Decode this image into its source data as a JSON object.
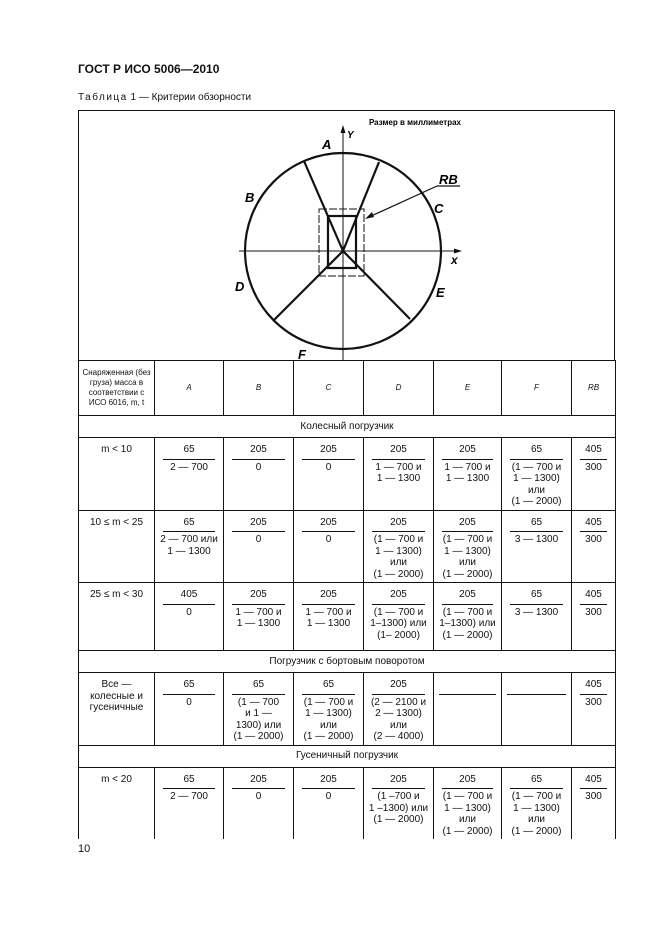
{
  "header": {
    "title": "ГОСТ Р ИСО 5006—2010",
    "caption_prefix": "Таблица",
    "caption_rest": " 1 — Критерии обзорности"
  },
  "diagram": {
    "units_note": "Размер в миллиметрах",
    "labels": {
      "A": "A",
      "B": "B",
      "C": "C",
      "D": "D",
      "E": "E",
      "F": "F",
      "RB": "RB",
      "x": "x",
      "y": "Y"
    }
  },
  "table": {
    "columns": [
      "Снаряженная (без груза) масса в соответствии с ИСО 6016, m, t",
      "A",
      "B",
      "C",
      "D",
      "E",
      "F",
      "RB"
    ],
    "body": [
      {
        "section": "Колесный погрузчик"
      },
      {
        "label": "m < 10",
        "cells": [
          {
            "num": "65",
            "den": [
              "2 — 700"
            ]
          },
          {
            "num": "205",
            "den": [
              "0"
            ]
          },
          {
            "num": "205",
            "den": [
              "0"
            ]
          },
          {
            "num": "205",
            "den": [
              "1 — 700 и",
              "1 — 1300"
            ]
          },
          {
            "num": "205",
            "den": [
              "1 — 700 и",
              "1 — 1300"
            ]
          },
          {
            "num": "65",
            "den": [
              "(1 — 700 и",
              "1 — 1300)",
              "или",
              "(1 — 2000)"
            ]
          },
          {
            "num": "405",
            "den": [
              "300"
            ]
          }
        ]
      },
      {
        "label": "10 ≤ m < 25",
        "cells": [
          {
            "num": "65",
            "den": [
              "2 — 700 или",
              "1 — 1300"
            ]
          },
          {
            "num": "205",
            "den": [
              "0"
            ]
          },
          {
            "num": "205",
            "den": [
              "0"
            ]
          },
          {
            "num": "205",
            "den": [
              "(1 — 700 и",
              "1 — 1300)",
              "или",
              "(1 — 2000)"
            ]
          },
          {
            "num": "205",
            "den": [
              "(1 — 700 и",
              "1 — 1300)",
              "или",
              "(1 — 2000)"
            ]
          },
          {
            "num": "65",
            "den": [
              "3 — 1300"
            ]
          },
          {
            "num": "405",
            "den": [
              "300"
            ]
          }
        ]
      },
      {
        "label": "25 ≤ m < 30",
        "cells": [
          {
            "num": "405",
            "den": [
              "0"
            ]
          },
          {
            "num": "205",
            "den": [
              "1 — 700 и",
              "1 — 1300"
            ]
          },
          {
            "num": "205",
            "den": [
              "1 — 700 и",
              "1 — 1300"
            ]
          },
          {
            "num": "205",
            "den": [
              "(1 — 700 и",
              "1–1300) или",
              "(1– 2000)"
            ]
          },
          {
            "num": "205",
            "den": [
              "(1 — 700 и",
              "1–1300) или",
              "(1 — 2000)"
            ]
          },
          {
            "num": "65",
            "den": [
              "3 — 1300"
            ]
          },
          {
            "num": "405",
            "den": [
              "300"
            ]
          }
        ]
      },
      {
        "section": "Погрузчик с бортовым поворотом"
      },
      {
        "label": "Все — колесные и гусеничные",
        "cells": [
          {
            "num": "65",
            "den": [
              "0"
            ]
          },
          {
            "num": "65",
            "den": [
              "(1 — 700",
              "и 1 —",
              "1300) или",
              "(1 — 2000)"
            ]
          },
          {
            "num": "65",
            "den": [
              "(1 — 700 и",
              "1 — 1300)",
              "или",
              "(1 — 2000)"
            ]
          },
          {
            "num": "205",
            "den": [
              "(2 — 2100 и",
              "2 — 1300)",
              "или",
              "(2 — 4000)"
            ]
          },
          {
            "num": "",
            "den": []
          },
          {
            "num": "",
            "den": []
          },
          {
            "num": "405",
            "den": [
              "300"
            ]
          }
        ]
      },
      {
        "section": "Гусеничный погрузчик"
      },
      {
        "label": "m < 20",
        "cells": [
          {
            "num": "65",
            "den": [
              "2 — 700"
            ]
          },
          {
            "num": "205",
            "den": [
              "0"
            ]
          },
          {
            "num": "205",
            "den": [
              "0"
            ]
          },
          {
            "num": "205",
            "den": [
              "(1 –700 и",
              "1 –1300) или",
              "(1 — 2000)"
            ]
          },
          {
            "num": "205",
            "den": [
              "(1 — 700 и",
              "1 — 1300)",
              "или",
              "(1 — 2000)"
            ]
          },
          {
            "num": "65",
            "den": [
              "(1 — 700 и",
              "1 — 1300)",
              "или",
              "(1 — 2000)"
            ]
          },
          {
            "num": "405",
            "den": [
              "300"
            ]
          }
        ]
      }
    ]
  },
  "footer": {
    "page_number": "10"
  }
}
